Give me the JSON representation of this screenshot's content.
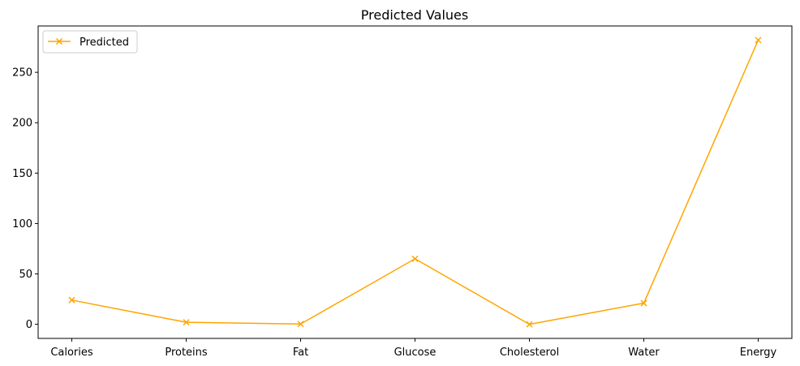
{
  "chart_data": {
    "type": "line",
    "title": "Predicted Values",
    "xlabel": "",
    "ylabel": "",
    "categories": [
      "Calories",
      "Proteins",
      "Fat",
      "Glucose",
      "Cholesterol",
      "Water",
      "Energy"
    ],
    "series": [
      {
        "name": "Predicted",
        "color": "#ffa500",
        "marker": "x",
        "values": [
          24,
          2,
          0.3,
          65,
          0,
          21,
          282
        ]
      }
    ],
    "yticks": [
      0,
      50,
      100,
      150,
      200,
      250
    ],
    "ylim": [
      -14,
      296
    ],
    "grid": false,
    "legend_position": "top-left"
  }
}
